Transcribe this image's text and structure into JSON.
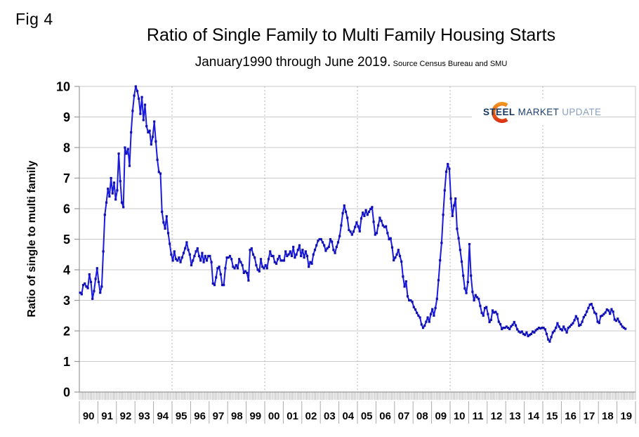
{
  "figure_label": "Fig 4",
  "title": "Ratio of Single Family to Multi Family Housing Starts",
  "subtitle": "January1990 through June 2019.",
  "subtitle_source": " Source Census Bureau and SMU",
  "logo": {
    "word1": "STEEL",
    "word2": "MARKET",
    "word3": "UPDATE"
  },
  "colors": {
    "line": "#1b1be0",
    "marker": "#0f0fb4",
    "gridline": "#cacaca",
    "dashed_gridline": "#b5b5b5",
    "axis": "#999999",
    "right_border": "#c4c4c4",
    "minor_tick": "#8f8f8f",
    "year_cell_border": "#aaaaaa",
    "logo_navy": "#17365d",
    "logo_light_blue": "#8aa0bf",
    "logo_orange_top": "#f59b20",
    "logo_orange_bottom": "#d92c10"
  },
  "chart_data": {
    "type": "line",
    "title": "Ratio of Single Family to Multi Family Housing Starts",
    "subtitle": "January1990 through June 2019. Source Census Bureau and SMU",
    "xlabel": "",
    "ylabel": "Ratio of single to multi family",
    "ylim": [
      0,
      10
    ],
    "y_ticks": [
      0,
      1,
      2,
      3,
      4,
      5,
      6,
      7,
      8,
      9,
      10
    ],
    "grid": true,
    "x_minor_ticks": "monthly",
    "x_span_years": 30,
    "x_start": "1990-01",
    "x_end": "2019-06",
    "dashed_vertical_gridlines_at_years": [
      1995,
      2000,
      2005,
      2010,
      2015
    ],
    "x_tick_labels": [
      "90",
      "91",
      "92",
      "93",
      "94",
      "95",
      "96",
      "97",
      "98",
      "99",
      "00",
      "01",
      "02",
      "03",
      "04",
      "05",
      "06",
      "07",
      "08",
      "09",
      "10",
      "11",
      "12",
      "13",
      "14",
      "15",
      "16",
      "17",
      "18",
      "19"
    ],
    "legend_position": "none",
    "series": [
      {
        "name": "Ratio of single family to multi family housing starts",
        "color": "#1b1be0",
        "first_month": "1990-01",
        "monthly_values": [
          3.25,
          3.2,
          3.5,
          3.55,
          3.45,
          3.4,
          3.85,
          3.6,
          3.05,
          3.3,
          3.7,
          4.05,
          3.6,
          3.25,
          3.45,
          4.6,
          5.8,
          6.2,
          6.65,
          6.4,
          7.0,
          6.5,
          6.85,
          6.3,
          6.6,
          7.8,
          6.9,
          6.2,
          6.05,
          8.0,
          7.8,
          7.95,
          7.4,
          8.5,
          9.2,
          9.7,
          10.0,
          9.85,
          9.6,
          9.1,
          9.65,
          8.9,
          9.4,
          8.7,
          8.5,
          8.55,
          8.1,
          8.35,
          8.85,
          8.2,
          7.6,
          7.2,
          7.15,
          5.9,
          5.55,
          5.35,
          5.75,
          5.2,
          4.85,
          4.5,
          4.3,
          4.6,
          4.35,
          4.3,
          4.4,
          4.25,
          4.4,
          4.55,
          4.7,
          4.9,
          4.65,
          4.5,
          4.15,
          4.3,
          4.45,
          4.6,
          4.7,
          4.45,
          4.3,
          4.55,
          4.25,
          4.45,
          4.3,
          4.45,
          4.45,
          4.25,
          3.55,
          3.5,
          3.75,
          4.05,
          4.1,
          3.85,
          3.5,
          3.5,
          4.05,
          4.4,
          4.4,
          4.45,
          4.35,
          4.1,
          4.05,
          4.15,
          4.05,
          4.35,
          4.25,
          4.15,
          3.9,
          3.95,
          3.9,
          3.65,
          4.65,
          4.7,
          4.5,
          4.4,
          4.15,
          4.0,
          3.95,
          4.35,
          4.1,
          4.05,
          4.15,
          4.05,
          4.35,
          4.6,
          4.45,
          4.45,
          4.25,
          4.2,
          4.35,
          4.45,
          4.3,
          4.3,
          4.3,
          4.6,
          4.45,
          4.5,
          4.6,
          4.45,
          4.75,
          4.4,
          4.5,
          4.65,
          4.8,
          4.45,
          4.65,
          4.4,
          4.6,
          4.45,
          4.1,
          4.25,
          4.2,
          4.5,
          4.65,
          4.8,
          4.95,
          5.0,
          5.0,
          4.9,
          4.8,
          4.62,
          4.7,
          4.75,
          5.0,
          4.92,
          4.65,
          4.55,
          4.75,
          4.9,
          5.1,
          5.45,
          5.85,
          6.1,
          5.9,
          5.7,
          5.3,
          5.25,
          5.15,
          5.25,
          5.4,
          5.55,
          5.42,
          5.26,
          5.68,
          5.87,
          5.76,
          5.95,
          5.8,
          5.9,
          5.99,
          6.05,
          5.57,
          5.15,
          5.2,
          5.45,
          5.7,
          5.6,
          5.45,
          5.4,
          5.42,
          5.2,
          5.0,
          5.03,
          4.73,
          4.31,
          4.4,
          4.5,
          4.65,
          4.45,
          4.27,
          3.78,
          3.45,
          3.62,
          3.13,
          3.0,
          3.0,
          2.95,
          2.78,
          2.7,
          2.59,
          2.5,
          2.44,
          2.21,
          2.1,
          2.17,
          2.3,
          2.44,
          2.3,
          2.55,
          2.71,
          2.5,
          2.75,
          3.05,
          3.66,
          4.31,
          4.88,
          5.8,
          6.6,
          7.21,
          7.46,
          7.3,
          6.33,
          5.76,
          6.1,
          6.33,
          5.34,
          5.03,
          4.65,
          4.27,
          3.81,
          3.39,
          3.24,
          3.6,
          4.84,
          3.81,
          3.28,
          3.0,
          3.17,
          3.1,
          3.05,
          2.82,
          2.59,
          2.5,
          2.75,
          2.78,
          2.55,
          2.29,
          2.36,
          2.67,
          2.6,
          2.62,
          2.55,
          2.3,
          2.22,
          2.06,
          2.1,
          2.1,
          2.14,
          2.1,
          2.06,
          2.15,
          2.2,
          2.29,
          2.18,
          2.05,
          1.98,
          1.95,
          1.98,
          1.9,
          1.87,
          1.95,
          1.83,
          1.87,
          1.9,
          1.98,
          1.95,
          2.02,
          2.06,
          2.1,
          2.08,
          2.1,
          2.1,
          2.05,
          1.9,
          1.72,
          1.65,
          1.8,
          1.95,
          2.0,
          2.1,
          2.25,
          2.14,
          2.06,
          2.02,
          2.14,
          2.05,
          1.95,
          2.1,
          2.14,
          2.2,
          2.25,
          2.35,
          2.48,
          2.4,
          2.17,
          2.2,
          2.3,
          2.45,
          2.52,
          2.63,
          2.75,
          2.86,
          2.88,
          2.75,
          2.6,
          2.56,
          2.3,
          2.26,
          2.48,
          2.5,
          2.55,
          2.6,
          2.7,
          2.67,
          2.56,
          2.71,
          2.63,
          2.37,
          2.33,
          2.4,
          2.3,
          2.22,
          2.14,
          2.1,
          2.07
        ]
      }
    ]
  }
}
